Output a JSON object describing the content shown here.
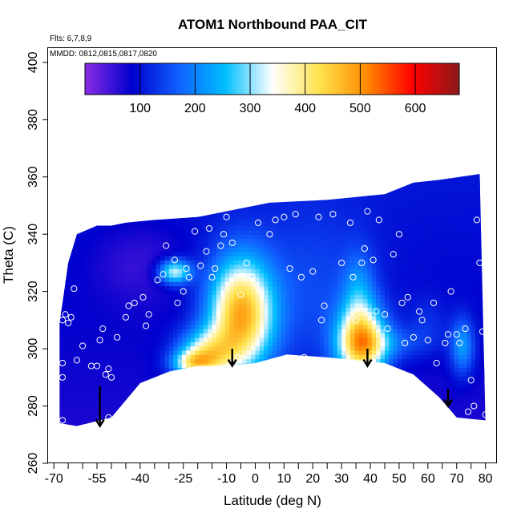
{
  "chart_data": {
    "type": "heatmap",
    "title": "ATOM1 Northbound PAA_CIT",
    "annotations": [
      "Flts: 6,7,8,9",
      "MMDD: 0812,0815,0817,0820"
    ],
    "xlabel": "Latitude (deg N)",
    "ylabel": "Theta (C)",
    "xlim": [
      -72,
      84
    ],
    "ylim": [
      260,
      405
    ],
    "x_ticks_labeled": [
      "-70",
      "-55",
      "-40",
      "-25",
      "-10",
      "0",
      "10",
      "20",
      "30",
      "40",
      "50",
      "60",
      "70",
      "80"
    ],
    "x_ticks_labeled_values": [
      -70,
      -55,
      -40,
      -25,
      -10,
      0,
      10,
      20,
      30,
      40,
      50,
      60,
      70,
      80
    ],
    "x_ticks_minor_values": [
      -65,
      -60,
      -50,
      -45,
      -35,
      -30,
      -20,
      -15,
      -5,
      5,
      15,
      25,
      35,
      45,
      55,
      65,
      75
    ],
    "y_ticks": [
      "260",
      "280",
      "300",
      "320",
      "340",
      "360",
      "380",
      "400"
    ],
    "y_ticks_values": [
      260,
      280,
      300,
      320,
      340,
      360,
      380,
      400
    ],
    "colorbar": {
      "range": [
        0,
        680
      ],
      "ticks": [
        "100",
        "200",
        "300",
        "400",
        "500",
        "600"
      ],
      "tick_values": [
        100,
        200,
        300,
        400,
        500,
        600
      ],
      "colors": [
        "#8a2be2",
        "#0000cd",
        "#1060ff",
        "#00bfff",
        "#ffffff",
        "#ffe44d",
        "#ff8c00",
        "#ff0000",
        "#8b1a1a"
      ]
    },
    "background_value": 80,
    "upper_boundary": [
      {
        "x": -68,
        "y": 309
      },
      {
        "x": -65,
        "y": 330
      },
      {
        "x": -62,
        "y": 340
      },
      {
        "x": -55,
        "y": 343
      },
      {
        "x": -50,
        "y": 343
      },
      {
        "x": -45,
        "y": 344
      },
      {
        "x": -35,
        "y": 345
      },
      {
        "x": -20,
        "y": 346
      },
      {
        "x": -5,
        "y": 349
      },
      {
        "x": 5,
        "y": 351
      },
      {
        "x": 25,
        "y": 352
      },
      {
        "x": 45,
        "y": 354
      },
      {
        "x": 55,
        "y": 358
      },
      {
        "x": 64,
        "y": 359
      },
      {
        "x": 78,
        "y": 361
      }
    ],
    "lower_boundary": [
      {
        "x": -68,
        "y": 274
      },
      {
        "x": -62,
        "y": 273
      },
      {
        "x": -50,
        "y": 276
      },
      {
        "x": -40,
        "y": 288
      },
      {
        "x": -30,
        "y": 292
      },
      {
        "x": -20,
        "y": 294
      },
      {
        "x": -10,
        "y": 294
      },
      {
        "x": 0,
        "y": 295
      },
      {
        "x": 11,
        "y": 298
      },
      {
        "x": 25,
        "y": 297
      },
      {
        "x": 35,
        "y": 296
      },
      {
        "x": 45,
        "y": 295
      },
      {
        "x": 55,
        "y": 291
      },
      {
        "x": 64,
        "y": 283
      },
      {
        "x": 70,
        "y": 276
      },
      {
        "x": 80,
        "y": 275
      }
    ],
    "anomalies": [
      {
        "x": -5,
        "y": 312,
        "sx": 8,
        "sy": 14,
        "value": 470
      },
      {
        "x": -17,
        "y": 298,
        "sx": 7,
        "sy": 6,
        "value": 330
      },
      {
        "x": -22,
        "y": 295,
        "sx": 5,
        "sy": 3,
        "value": 260
      },
      {
        "x": -28,
        "y": 327,
        "sx": 4,
        "sy": 3,
        "value": 330
      },
      {
        "x": 37,
        "y": 302,
        "sx": 6,
        "sy": 9,
        "value": 450
      },
      {
        "x": 36,
        "y": 320,
        "sx": 4,
        "sy": 10,
        "value": 180
      },
      {
        "x": 47,
        "y": 302,
        "sx": 9,
        "sy": 4,
        "value": 150
      },
      {
        "x": 60,
        "y": 309,
        "sx": 5,
        "sy": 7,
        "value": 120
      },
      {
        "x": 72,
        "y": 301,
        "sx": 3,
        "sy": 7,
        "value": 220
      },
      {
        "x": 20,
        "y": 318,
        "sx": 14,
        "sy": 22,
        "value": 140
      },
      {
        "x": -40,
        "y": 330,
        "sx": 12,
        "sy": 10,
        "value": 40
      }
    ],
    "points": [
      {
        "x": -67,
        "y": 310
      },
      {
        "x": -66,
        "y": 312
      },
      {
        "x": -65,
        "y": 309
      },
      {
        "x": -67,
        "y": 295
      },
      {
        "x": -67,
        "y": 290
      },
      {
        "x": -67,
        "y": 275
      },
      {
        "x": -64,
        "y": 311
      },
      {
        "x": -63,
        "y": 321
      },
      {
        "x": -62,
        "y": 296
      },
      {
        "x": -60,
        "y": 301
      },
      {
        "x": -57,
        "y": 294
      },
      {
        "x": -55,
        "y": 294
      },
      {
        "x": -54,
        "y": 303
      },
      {
        "x": -53,
        "y": 307
      },
      {
        "x": -52,
        "y": 291
      },
      {
        "x": -51,
        "y": 276
      },
      {
        "x": -51,
        "y": 293
      },
      {
        "x": -50,
        "y": 290
      },
      {
        "x": -48,
        "y": 304
      },
      {
        "x": -47,
        "y": 277
      },
      {
        "x": -45,
        "y": 311
      },
      {
        "x": -44,
        "y": 315
      },
      {
        "x": -42,
        "y": 316
      },
      {
        "x": -38,
        "y": 308
      },
      {
        "x": -39,
        "y": 318
      },
      {
        "x": -37,
        "y": 312
      },
      {
        "x": -36,
        "y": 288
      },
      {
        "x": -34,
        "y": 324
      },
      {
        "x": -32,
        "y": 326
      },
      {
        "x": -31,
        "y": 336
      },
      {
        "x": -28,
        "y": 331
      },
      {
        "x": -27,
        "y": 316
      },
      {
        "x": -25,
        "y": 320
      },
      {
        "x": -24,
        "y": 328
      },
      {
        "x": -23,
        "y": 325
      },
      {
        "x": -22,
        "y": 292
      },
      {
        "x": -21,
        "y": 341
      },
      {
        "x": -19,
        "y": 329
      },
      {
        "x": -17,
        "y": 334
      },
      {
        "x": -16,
        "y": 342
      },
      {
        "x": -15,
        "y": 325
      },
      {
        "x": -14,
        "y": 328
      },
      {
        "x": -12,
        "y": 336
      },
      {
        "x": -11,
        "y": 340
      },
      {
        "x": -10,
        "y": 346
      },
      {
        "x": -8,
        "y": 337
      },
      {
        "x": -6,
        "y": 297
      },
      {
        "x": -5,
        "y": 319
      },
      {
        "x": -4,
        "y": 325
      },
      {
        "x": -3,
        "y": 330
      },
      {
        "x": -1,
        "y": 325
      },
      {
        "x": 1,
        "y": 344
      },
      {
        "x": 2,
        "y": 320
      },
      {
        "x": 5,
        "y": 340
      },
      {
        "x": 7,
        "y": 345
      },
      {
        "x": 10,
        "y": 346
      },
      {
        "x": 12,
        "y": 328
      },
      {
        "x": 14,
        "y": 347
      },
      {
        "x": 16,
        "y": 325
      },
      {
        "x": 17,
        "y": 297
      },
      {
        "x": 20,
        "y": 327
      },
      {
        "x": 22,
        "y": 346
      },
      {
        "x": 23,
        "y": 310
      },
      {
        "x": 24,
        "y": 315
      },
      {
        "x": 27,
        "y": 347
      },
      {
        "x": 30,
        "y": 330
      },
      {
        "x": 33,
        "y": 344
      },
      {
        "x": 34,
        "y": 325
      },
      {
        "x": 35,
        "y": 310
      },
      {
        "x": 37,
        "y": 330
      },
      {
        "x": 38,
        "y": 335
      },
      {
        "x": 39,
        "y": 348
      },
      {
        "x": 41,
        "y": 331
      },
      {
        "x": 42,
        "y": 313
      },
      {
        "x": 43,
        "y": 345
      },
      {
        "x": 45,
        "y": 312
      },
      {
        "x": 46,
        "y": 307
      },
      {
        "x": 48,
        "y": 333
      },
      {
        "x": 50,
        "y": 340
      },
      {
        "x": 51,
        "y": 316
      },
      {
        "x": 52,
        "y": 302
      },
      {
        "x": 53,
        "y": 318
      },
      {
        "x": 55,
        "y": 304
      },
      {
        "x": 57,
        "y": 313
      },
      {
        "x": 58,
        "y": 310
      },
      {
        "x": 60,
        "y": 303
      },
      {
        "x": 62,
        "y": 316
      },
      {
        "x": 63,
        "y": 295
      },
      {
        "x": 66,
        "y": 302
      },
      {
        "x": 67,
        "y": 305
      },
      {
        "x": 68,
        "y": 320
      },
      {
        "x": 70,
        "y": 305
      },
      {
        "x": 71,
        "y": 302
      },
      {
        "x": 73,
        "y": 307
      },
      {
        "x": 74,
        "y": 278
      },
      {
        "x": 75,
        "y": 289
      },
      {
        "x": 76,
        "y": 280
      },
      {
        "x": 77,
        "y": 345
      },
      {
        "x": 78,
        "y": 330
      },
      {
        "x": 79,
        "y": 306
      },
      {
        "x": 80,
        "y": 277
      }
    ],
    "arrows": [
      {
        "x": -54,
        "y_top": 287,
        "y_bottom": 273
      },
      {
        "x": -8,
        "y_top": 300,
        "y_bottom": 294
      },
      {
        "x": 39,
        "y_top": 300,
        "y_bottom": 294
      },
      {
        "x": 67,
        "y_top": 286,
        "y_bottom": 280
      }
    ]
  }
}
